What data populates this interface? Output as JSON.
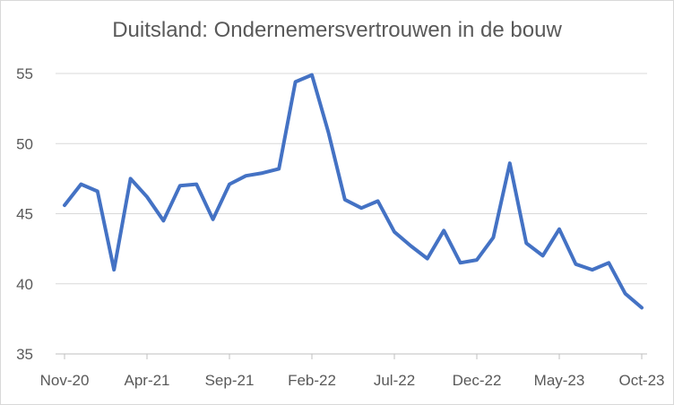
{
  "chart_data": {
    "type": "line",
    "title": "Duitsland: Ondernemersvertrouwen in de bouw",
    "xlabel": "",
    "ylabel": "",
    "ylim": [
      35,
      55
    ],
    "y_ticks": [
      35,
      40,
      45,
      50,
      55
    ],
    "x_tick_labels": [
      "Nov-20",
      "Apr-21",
      "Sep-21",
      "Feb-22",
      "Jul-22",
      "Dec-22",
      "May-23",
      "Oct-23"
    ],
    "grid": "horizontal",
    "legend": "none",
    "line_color": "#4472C4",
    "x": [
      "Nov-20",
      "Dec-20",
      "Jan-21",
      "Feb-21",
      "Mar-21",
      "Apr-21",
      "May-21",
      "Jun-21",
      "Jul-21",
      "Aug-21",
      "Sep-21",
      "Oct-21",
      "Nov-21",
      "Dec-21",
      "Jan-22",
      "Feb-22",
      "Mar-22",
      "Apr-22",
      "May-22",
      "Jun-22",
      "Jul-22",
      "Aug-22",
      "Sep-22",
      "Oct-22",
      "Nov-22",
      "Dec-22",
      "Jan-23",
      "Feb-23",
      "Mar-23",
      "Apr-23",
      "May-23",
      "Jun-23",
      "Jul-23",
      "Aug-23",
      "Sep-23",
      "Oct-23"
    ],
    "series": [
      {
        "values": [
          45.6,
          47.1,
          46.6,
          41.0,
          47.5,
          46.2,
          44.5,
          47.0,
          47.1,
          44.6,
          47.1,
          47.7,
          47.9,
          48.2,
          54.4,
          54.9,
          50.8,
          46.0,
          45.4,
          45.9,
          43.7,
          42.7,
          41.8,
          43.8,
          41.5,
          41.7,
          43.3,
          48.6,
          42.9,
          42.0,
          43.9,
          41.4,
          41.0,
          41.5,
          39.3,
          38.3
        ]
      }
    ]
  }
}
